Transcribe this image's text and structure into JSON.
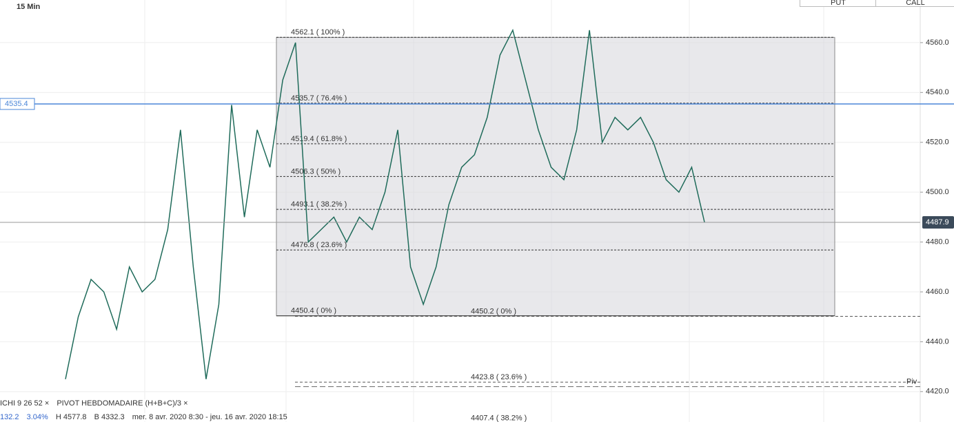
{
  "buttons": [
    "PUT",
    "CALL"
  ],
  "footer": {
    "indicators": [
      "ICHI 9 26 52 ×",
      "PIVOT HEBDOMADAIRE (H+B+C)/3 ×"
    ],
    "stats": [
      "132.2",
      "3.04%",
      "H 4577.8",
      "B 4332.3",
      "mer. 8 avr. 2020 8:30 - jeu. 16 avr. 2020 18:15"
    ]
  },
  "chart_data": {
    "type": "line",
    "timeframe": "15 Min",
    "series": [
      {
        "name": "Close",
        "color": "#1f6b5a",
        "values": [
          4425,
          4450,
          4465,
          4460,
          4445,
          4470,
          4460,
          4465,
          4485,
          4525,
          4470,
          4425,
          4455,
          4535,
          4490,
          4525,
          4510,
          4545,
          4560,
          4480,
          4485,
          4490,
          4480,
          4490,
          4485,
          4500,
          4525,
          4470,
          4455,
          4470,
          4495,
          4510,
          4515,
          4530,
          4555,
          4565,
          4545,
          4525,
          4510,
          4505,
          4525,
          4565,
          4520,
          4530,
          4525,
          4530,
          4520,
          4505,
          4500,
          4510,
          4488
        ]
      }
    ],
    "ylim": [
      4407.8,
      4577.1
    ],
    "yticks": [
      {
        "value": 4420,
        "label": "4420.0"
      },
      {
        "value": 4440,
        "label": "4440.0"
      },
      {
        "value": 4460,
        "label": "4460.0"
      },
      {
        "value": 4480,
        "label": "4480.0"
      },
      {
        "value": 4500,
        "label": "4500.0"
      },
      {
        "value": 4520,
        "label": "4520.0"
      },
      {
        "value": 4540,
        "label": "4540.0"
      },
      {
        "value": 4560,
        "label": "4560.0"
      }
    ],
    "grid": true,
    "fib_retracement": [
      {
        "value": 4562.1,
        "label": "4562.1 ( 100% )"
      },
      {
        "value": 4535.7,
        "label": "4535.7 ( 76.4% )"
      },
      {
        "value": 4519.4,
        "label": "4519.4 ( 61.8% )"
      },
      {
        "value": 4506.3,
        "label": "4506.3 ( 50% )"
      },
      {
        "value": 4493.1,
        "label": "4493.1 ( 38.2% )"
      },
      {
        "value": 4476.8,
        "label": "4476.8 ( 23.6% )"
      },
      {
        "value": 4450.4,
        "label": "4450.4 ( 0% )"
      }
    ],
    "fib_extension": [
      {
        "value": 4450.2,
        "label": "4450.2 ( 0% )"
      },
      {
        "value": 4423.8,
        "label": "4423.8 ( 23.6% )"
      },
      {
        "value": 4407.4,
        "label": "4407.4 ( 38.2% )"
      }
    ],
    "alert_line": {
      "value": 4535.4,
      "label": "4535.4",
      "color": "#4a86d8"
    },
    "last_price": {
      "value": 4487.9,
      "label": "4487.9"
    },
    "pivot": {
      "value": 4422,
      "label": "Piv"
    }
  }
}
